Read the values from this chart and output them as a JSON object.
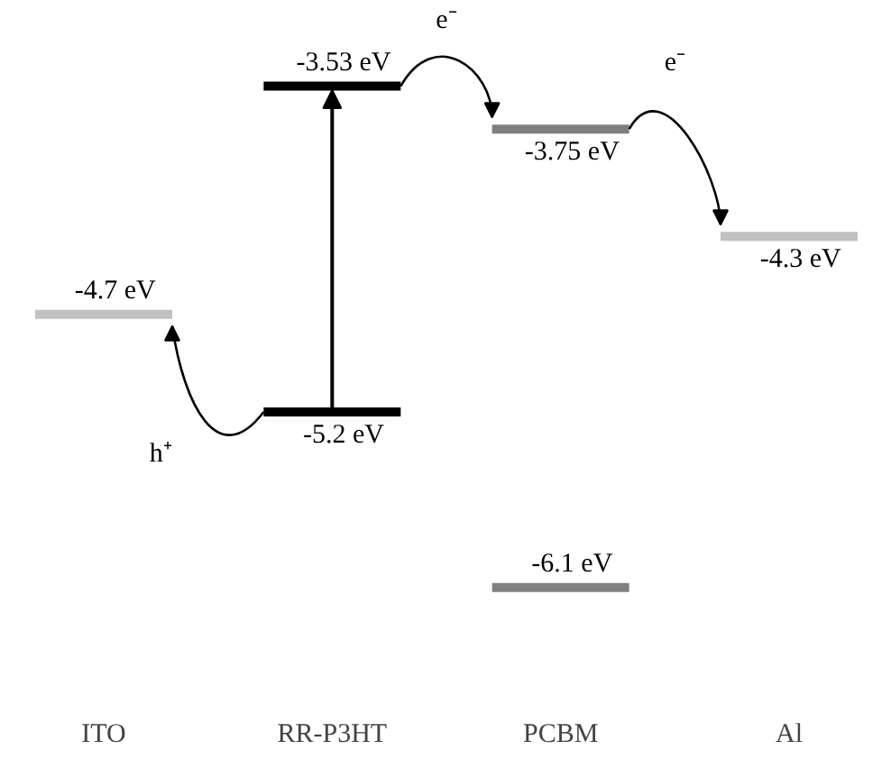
{
  "chart_data": {
    "type": "other",
    "categories": [
      "ITO",
      "RR-P3HT",
      "PCBM",
      "Al"
    ],
    "series": [
      {
        "values": [
          -4.7,
          -3.53,
          -3.75,
          -4.3
        ],
        "colors": [
          "#c0c0c0",
          "#000000",
          "#808080",
          "#c0c0c0"
        ],
        "value_labels": [
          "-4.7 eV",
          "-3.53 eV",
          "-3.75 eV",
          "-4.3 eV"
        ]
      },
      {
        "values": [
          null,
          -5.2,
          -6.1,
          null
        ],
        "colors": [
          null,
          "#000000",
          "#808080",
          null
        ],
        "value_labels": [
          null,
          "-5.2 eV",
          "-6.1 eV",
          null
        ]
      }
    ],
    "annotations": [
      "e⁻",
      "e⁻",
      "h⁺"
    ]
  }
}
